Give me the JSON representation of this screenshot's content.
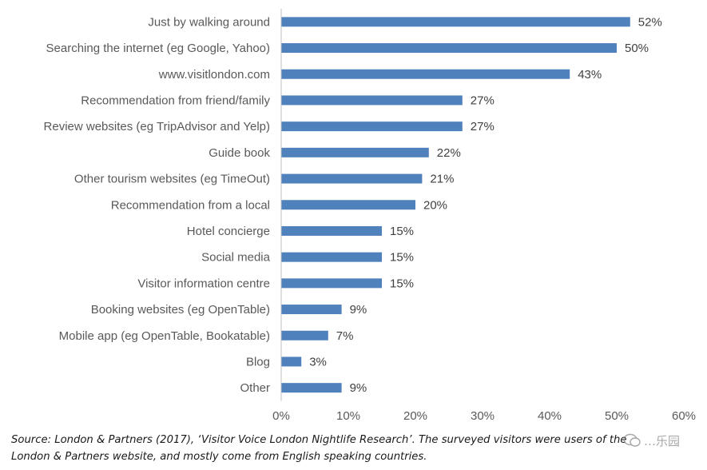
{
  "chart_data": {
    "type": "bar",
    "orientation": "horizontal",
    "categories": [
      "Just by walking around",
      "Searching the internet (eg Google, Yahoo)",
      "www.visitlondon.com",
      "Recommendation from friend/family",
      "Review websites (eg TripAdvisor and Yelp)",
      "Guide book",
      "Other tourism websites (eg TimeOut)",
      "Recommendation from a local",
      "Hotel concierge",
      "Social media",
      "Visitor information centre",
      "Booking websites (eg OpenTable)",
      "Mobile app (eg OpenTable, Bookatable)",
      "Blog",
      "Other"
    ],
    "values": [
      52,
      50,
      43,
      27,
      27,
      22,
      21,
      20,
      15,
      15,
      15,
      9,
      7,
      3,
      9
    ],
    "value_labels": [
      "52%",
      "50%",
      "43%",
      "27%",
      "27%",
      "22%",
      "21%",
      "20%",
      "15%",
      "15%",
      "15%",
      "9%",
      "7%",
      "3%",
      "9%"
    ],
    "xlim": [
      0,
      60
    ],
    "xticks": [
      0,
      10,
      20,
      30,
      40,
      50,
      60
    ],
    "xtick_labels": [
      "0%",
      "10%",
      "20%",
      "30%",
      "40%",
      "50%",
      "60%"
    ],
    "title": "",
    "xlabel": "",
    "ylabel": "",
    "grid": false,
    "bar_color": "#4f81bd"
  },
  "source_note": {
    "line1": "Source: London & Partners (2017), ‘Visitor Voice London Nightlife Research’.  The surveyed visitors were users of the",
    "line2": "London & Partners website, and mostly come from English speaking countries."
  },
  "watermark": {
    "text": "…乐园"
  }
}
